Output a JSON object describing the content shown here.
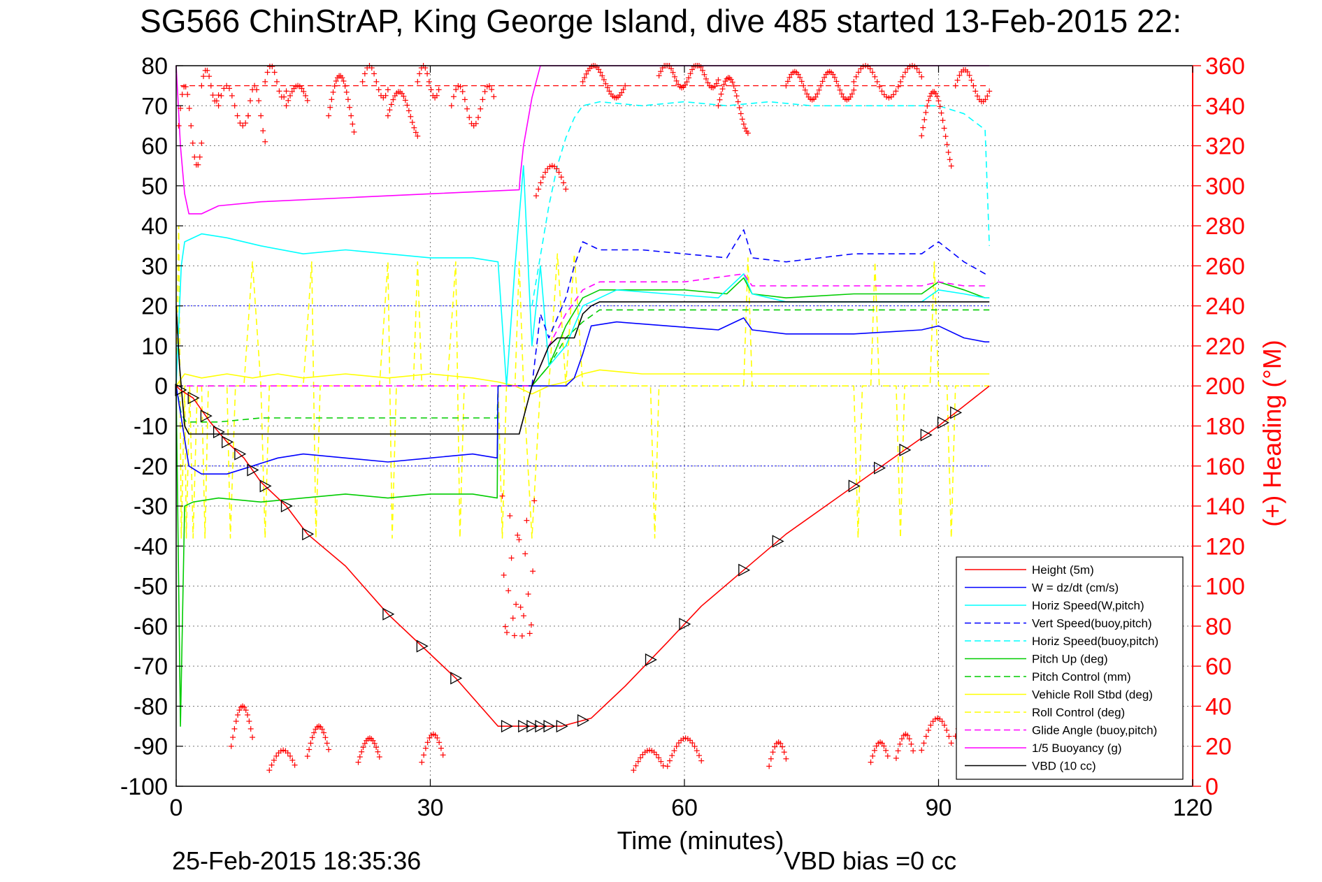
{
  "chart_data": {
    "type": "line",
    "title": "SG566 ChinStrAP, King George Island, dive 485 started 13-Feb-2015 22:",
    "xlabel": "Time (minutes)",
    "ylabel_right": "(+) Heading (°M)",
    "footer_left": "25-Feb-2015 18:35:36",
    "footer_right": "VBD bias =0 cc",
    "xlim": [
      0,
      120
    ],
    "ylim": [
      -100,
      80
    ],
    "ylim_right": [
      0,
      360
    ],
    "x_ticks": [
      0,
      30,
      60,
      90,
      120
    ],
    "y_ticks": [
      -100,
      -90,
      -80,
      -70,
      -60,
      -50,
      -40,
      -30,
      -20,
      -10,
      0,
      10,
      20,
      30,
      40,
      50,
      60,
      70,
      80
    ],
    "y_ticks_right": [
      0,
      20,
      40,
      60,
      80,
      100,
      120,
      140,
      160,
      180,
      200,
      220,
      240,
      260,
      280,
      300,
      320,
      340,
      360
    ],
    "grid": true,
    "legend_position": "bottom-right",
    "colors": {
      "height": "#ff0000",
      "w": "#0000ff",
      "horiz": "#00ffff",
      "vert_buoy": "#0000ff",
      "horiz_buoy": "#00ffff",
      "pitch": "#00cc00",
      "pitch_ctrl": "#00cc00",
      "roll": "#ffff00",
      "roll_ctrl": "#ffff00",
      "glide": "#ff00ff",
      "buoy": "#ff00ff",
      "vbd": "#000000",
      "heading": "#ff0000"
    },
    "legend": [
      {
        "label": "Height (5m)",
        "color": "#ff0000",
        "dash": false
      },
      {
        "label": "W = dz/dt (cm/s)",
        "color": "#0000ff",
        "dash": false
      },
      {
        "label": "Horiz Speed(W,pitch)",
        "color": "#00ffff",
        "dash": false
      },
      {
        "label": "Vert Speed(buoy,pitch)",
        "color": "#0000ff",
        "dash": true
      },
      {
        "label": "Horiz Speed(buoy,pitch)",
        "color": "#00ffff",
        "dash": true
      },
      {
        "label": "Pitch Up (deg)",
        "color": "#00cc00",
        "dash": false
      },
      {
        "label": "Pitch Control (mm)",
        "color": "#00cc00",
        "dash": true
      },
      {
        "label": "Vehicle Roll Stbd (deg)",
        "color": "#ffff00",
        "dash": false
      },
      {
        "label": "Roll Control (deg)",
        "color": "#ffff00",
        "dash": true
      },
      {
        "label": "Glide Angle (buoy,pitch)",
        "color": "#ff00ff",
        "dash": true
      },
      {
        "label": "1/5 Buoyancy (g)",
        "color": "#ff00ff",
        "dash": false
      },
      {
        "label": "VBD (10 cc)",
        "color": "#000000",
        "dash": false
      }
    ],
    "series": [
      {
        "name": "Height (5m)",
        "key": "height",
        "dash": false,
        "x": [
          0,
          0.5,
          2,
          4,
          6,
          8,
          10,
          13,
          15.5,
          20,
          25,
          29,
          33,
          38,
          40,
          45.5,
          49,
          53,
          58,
          62,
          67,
          72,
          78,
          84,
          90,
          93,
          96
        ],
        "y": [
          0,
          -1,
          -3,
          -9,
          -14,
          -18,
          -24,
          -30,
          -37,
          -45,
          -57,
          -65,
          -73,
          -85,
          -85,
          -85,
          -83,
          -75,
          -64,
          -55,
          -46,
          -37,
          -28,
          -19,
          -10,
          -5,
          0
        ]
      },
      {
        "name": "W = dz/dt (cm/s)",
        "key": "w",
        "dash": false,
        "x": [
          0,
          0.6,
          1.5,
          3,
          6,
          9,
          12,
          15,
          20,
          25,
          30,
          35,
          37.9,
          38,
          40,
          42,
          44,
          46,
          47,
          48,
          49,
          52,
          58,
          64,
          67,
          68,
          72,
          80,
          88,
          90,
          93,
          95.5,
          96
        ],
        "y": [
          0,
          -8,
          -20,
          -22,
          -22,
          -20,
          -18,
          -17,
          -18,
          -19,
          -18,
          -17,
          -18,
          0,
          0,
          0,
          0,
          0,
          2,
          8,
          15,
          16,
          15,
          14,
          17,
          14,
          13,
          13,
          14,
          15,
          12,
          11,
          11
        ]
      },
      {
        "name": "Horiz Speed(W,pitch)",
        "key": "horiz",
        "dash": false,
        "x": [
          0,
          0.6,
          1,
          3,
          6,
          10,
          15,
          20,
          25,
          30,
          35,
          38,
          39,
          40,
          41,
          42,
          43,
          44,
          46,
          48,
          52,
          58,
          64,
          67,
          68,
          72,
          80,
          88,
          90,
          93,
          95.5,
          96
        ],
        "y": [
          0,
          30,
          36,
          38,
          37,
          35,
          33,
          34,
          33,
          32,
          32,
          31,
          0,
          30,
          55,
          10,
          30,
          5,
          10,
          20,
          24,
          23,
          22,
          28,
          23,
          21,
          21,
          21,
          24,
          23,
          22,
          22
        ]
      },
      {
        "name": "Vert Speed(buoy,pitch)",
        "key": "vert_buoy",
        "dash": true,
        "x": [
          42,
          43,
          44,
          46,
          47,
          48,
          50,
          55,
          60,
          65,
          67,
          68,
          72,
          80,
          88,
          90,
          93,
          95.5,
          96
        ],
        "y": [
          0,
          18,
          12,
          22,
          30,
          36,
          34,
          34,
          33,
          32,
          39,
          32,
          31,
          33,
          33,
          36,
          31,
          28,
          28
        ]
      },
      {
        "name": "Horiz Speed(buoy,pitch)",
        "key": "horiz_buoy",
        "dash": true,
        "x": [
          42,
          44,
          45,
          46,
          47,
          48,
          50,
          55,
          60,
          65,
          70,
          75,
          80,
          85,
          90,
          93,
          95.5,
          96
        ],
        "y": [
          20,
          45,
          55,
          62,
          67,
          70,
          71,
          70,
          71,
          70,
          71,
          70,
          70,
          70,
          70,
          68,
          64,
          35
        ]
      },
      {
        "name": "Pitch Up (deg)",
        "key": "pitch",
        "dash": false,
        "x": [
          0,
          0.5,
          1,
          2,
          5,
          10,
          15,
          20,
          25,
          30,
          35,
          37.9,
          38,
          40,
          42,
          44,
          46,
          48,
          50,
          55,
          60,
          65,
          67,
          68,
          72,
          80,
          88,
          90,
          93,
          95.5,
          96
        ],
        "y": [
          0,
          -85,
          -30,
          -29,
          -28,
          -29,
          -28,
          -27,
          -28,
          -27,
          -27,
          -28,
          0,
          0,
          0,
          5,
          15,
          22,
          24,
          24,
          24,
          23,
          27,
          23,
          22,
          23,
          23,
          26,
          24,
          22,
          22
        ]
      },
      {
        "name": "Pitch Control (mm)",
        "key": "pitch_ctrl",
        "dash": true,
        "x": [
          0,
          0.6,
          1.2,
          5,
          10,
          20,
          30,
          37.9,
          38,
          41,
          42,
          44,
          46,
          48,
          50,
          60,
          70,
          80,
          90,
          95,
          96
        ],
        "y": [
          0,
          -7,
          -9,
          -9,
          -8,
          -8,
          -8,
          -8,
          0,
          0,
          0,
          5,
          12,
          16,
          19,
          19,
          19,
          19,
          19,
          19,
          19
        ]
      },
      {
        "name": "Vehicle Roll Stbd (deg)",
        "key": "roll",
        "dash": false,
        "x": [
          0,
          1,
          3,
          6,
          9,
          12,
          15,
          20,
          25,
          30,
          35,
          38,
          40,
          42,
          44,
          46,
          48,
          50,
          55,
          60,
          65,
          70,
          75,
          80,
          85,
          90,
          93,
          95,
          96
        ],
        "y": [
          0,
          3,
          2,
          3,
          2,
          3,
          2,
          3,
          2,
          3,
          2,
          1,
          0,
          -2,
          0,
          1,
          3,
          4,
          3,
          3,
          3,
          3,
          3,
          3,
          3,
          3,
          3,
          3,
          3
        ]
      },
      {
        "name": "Roll Control (deg)",
        "key": "roll_ctrl",
        "dash": true,
        "x": [
          0,
          0.3,
          0.6,
          1,
          1.2,
          1.6,
          2,
          2.5,
          3,
          3.4,
          3.8,
          5,
          6,
          6.4,
          7,
          8,
          9,
          10,
          10.5,
          11,
          12,
          13,
          15,
          16,
          16.5,
          17,
          20,
          24,
          25,
          25.5,
          26,
          28,
          28.5,
          29,
          32,
          33,
          33.5,
          34,
          38,
          38.5,
          39,
          40,
          40.5,
          41,
          42,
          43,
          44,
          45,
          46,
          47,
          48,
          48.5,
          50,
          56,
          56.5,
          57,
          60,
          64,
          65,
          67,
          67.5,
          68,
          70,
          80,
          80.5,
          81,
          82,
          82.5,
          83,
          85,
          85.5,
          86,
          88,
          89,
          89.5,
          90,
          91,
          91.5,
          92,
          95,
          96
        ],
        "y": [
          0,
          40,
          -38,
          0,
          -38,
          0,
          -38,
          0,
          0,
          -38,
          0,
          0,
          0,
          -38,
          0,
          0,
          31,
          0,
          -38,
          0,
          0,
          0,
          0,
          31,
          -38,
          0,
          0,
          0,
          31,
          -38,
          0,
          0,
          31,
          0,
          0,
          31,
          -38,
          0,
          0,
          -38,
          0,
          0,
          31,
          0,
          -38,
          0,
          0,
          33,
          0,
          33,
          0,
          0,
          0,
          0,
          -38,
          0,
          0,
          0,
          0,
          0,
          32,
          0,
          0,
          0,
          -38,
          0,
          0,
          31,
          0,
          0,
          -38,
          0,
          0,
          0,
          31,
          0,
          0,
          -38,
          0,
          0,
          0
        ]
      },
      {
        "name": "Glide Angle (buoy,pitch)",
        "key": "glide",
        "dash": true,
        "x": [
          0,
          38,
          42,
          44,
          46,
          48,
          50,
          60,
          67,
          68,
          72,
          80,
          88,
          90,
          93,
          96
        ],
        "y": [
          0,
          0,
          0,
          10,
          18,
          24,
          26,
          26,
          28,
          25,
          25,
          25,
          25,
          26,
          25,
          25
        ]
      },
      {
        "name": "1/5 Buoyancy (g)",
        "key": "buoy",
        "dash": false,
        "x": [
          0,
          0.5,
          1,
          1.5,
          3,
          5,
          10,
          20,
          30,
          40.5,
          40.6,
          41,
          42,
          43,
          96
        ],
        "y": [
          80,
          60,
          48,
          43,
          43,
          45,
          46,
          47,
          48,
          49,
          52,
          60,
          72,
          80,
          80
        ]
      },
      {
        "name": "VBD (10 cc)",
        "key": "vbd",
        "dash": false,
        "x": [
          0,
          0.4,
          1,
          1.5,
          5,
          20,
          40.5,
          42,
          43,
          44,
          45,
          46,
          47,
          48,
          49,
          50,
          96
        ],
        "y": [
          20,
          5,
          -10,
          -12,
          -12,
          -12,
          -12,
          0,
          5,
          10,
          12,
          12,
          12,
          18,
          20,
          21,
          21
        ]
      }
    ],
    "heading_ref_dashed": [
      {
        "axis": "right",
        "value": 350
      }
    ],
    "height_markers_x": [
      0.5,
      2,
      3.5,
      5,
      6,
      7.5,
      9,
      10.5,
      13,
      15.5,
      25,
      29,
      33,
      39,
      41,
      42,
      43,
      44,
      45.5,
      48,
      56,
      60,
      67,
      71,
      80,
      83,
      86,
      88.5,
      90.5,
      92
    ]
  }
}
